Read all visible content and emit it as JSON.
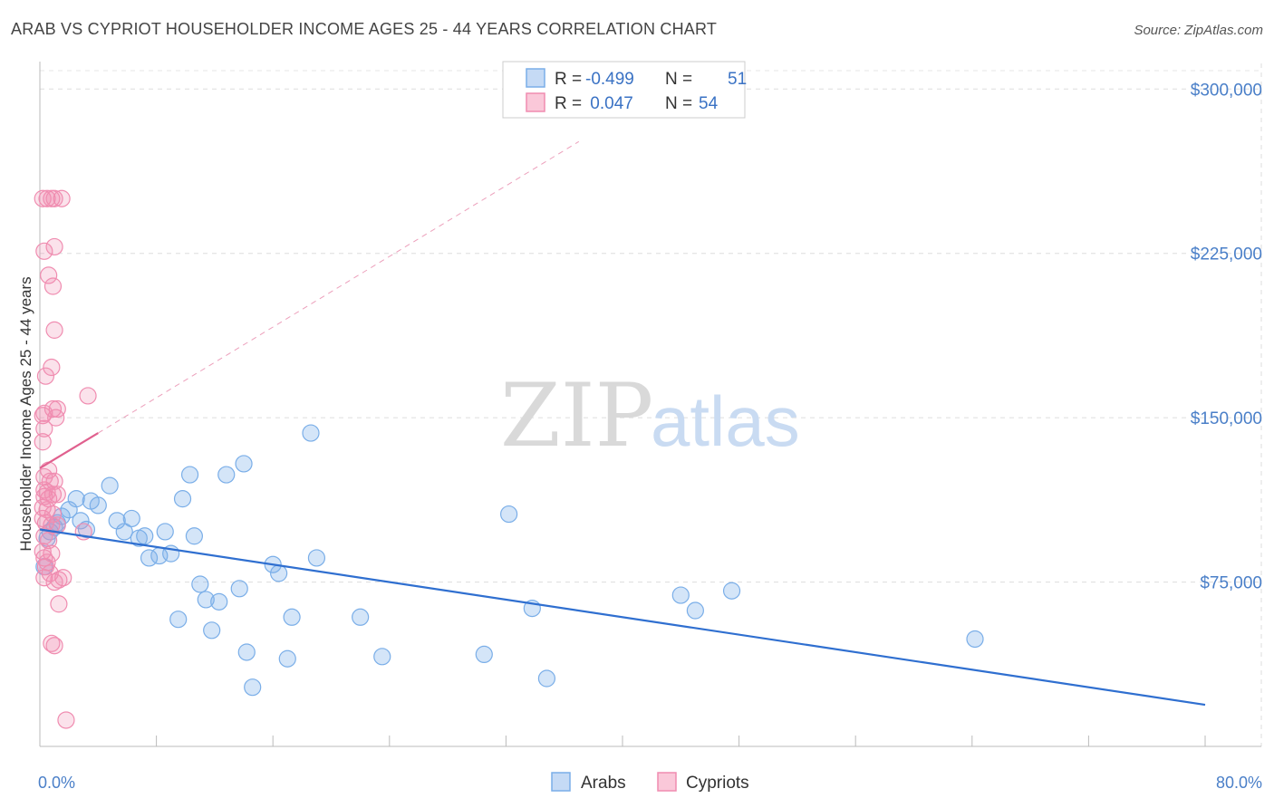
{
  "chart_data": {
    "type": "scatter",
    "title": "ARAB VS CYPRIOT HOUSEHOLDER INCOME AGES 25 - 44 YEARS CORRELATION CHART",
    "source": "Source: ZipAtlas.com",
    "xlabel": "",
    "ylabel": "Householder Income Ages 25 - 44 years",
    "xlim": [
      0,
      80
    ],
    "ylim": [
      0,
      315000
    ],
    "x_tick_labels": [
      "0.0%",
      "80.0%"
    ],
    "y_ticks": [
      75000,
      150000,
      225000,
      300000
    ],
    "y_tick_labels": [
      "$75,000",
      "$150,000",
      "$225,000",
      "$300,000"
    ],
    "watermark": {
      "zip": "ZIP",
      "atlas": "atlas"
    },
    "legend": {
      "rows": [
        {
          "r_label": "R = ",
          "r_value": "-0.499",
          "n_label": "N = ",
          "n_value": "51"
        },
        {
          "r_label": "R = ",
          "r_value": " 0.047",
          "n_label": "N = ",
          "n_value": "54"
        }
      ]
    },
    "series": [
      {
        "name": "Arabs",
        "color": "#7aaee8",
        "line_color": "#2f6fd0",
        "trend": {
          "x0": 0,
          "y0": 99000,
          "x1": 80,
          "y1": 19000
        },
        "points": [
          [
            0.5,
            95000
          ],
          [
            0.7,
            98000
          ],
          [
            1.0,
            100000
          ],
          [
            1.2,
            102000
          ],
          [
            1.5,
            105000
          ],
          [
            2.0,
            108000
          ],
          [
            2.5,
            113000
          ],
          [
            2.8,
            103000
          ],
          [
            3.2,
            99000
          ],
          [
            3.5,
            112000
          ],
          [
            4.0,
            110000
          ],
          [
            4.8,
            119000
          ],
          [
            5.3,
            103000
          ],
          [
            5.8,
            98000
          ],
          [
            6.3,
            104000
          ],
          [
            6.8,
            95000
          ],
          [
            7.2,
            96000
          ],
          [
            7.5,
            86000
          ],
          [
            8.2,
            87000
          ],
          [
            8.6,
            98000
          ],
          [
            9.0,
            88000
          ],
          [
            9.5,
            58000
          ],
          [
            9.8,
            113000
          ],
          [
            10.3,
            124000
          ],
          [
            10.6,
            96000
          ],
          [
            11.0,
            74000
          ],
          [
            11.4,
            67000
          ],
          [
            11.8,
            53000
          ],
          [
            12.3,
            66000
          ],
          [
            12.8,
            124000
          ],
          [
            13.7,
            72000
          ],
          [
            14.0,
            129000
          ],
          [
            14.2,
            43000
          ],
          [
            14.6,
            27000
          ],
          [
            16.0,
            83000
          ],
          [
            16.4,
            79000
          ],
          [
            17.0,
            40000
          ],
          [
            17.3,
            59000
          ],
          [
            18.6,
            143000
          ],
          [
            19.0,
            86000
          ],
          [
            22.0,
            59000
          ],
          [
            23.5,
            41000
          ],
          [
            30.5,
            42000
          ],
          [
            32.2,
            106000
          ],
          [
            33.8,
            63000
          ],
          [
            34.8,
            31000
          ],
          [
            44.0,
            69000
          ],
          [
            45.0,
            62000
          ],
          [
            47.5,
            71000
          ],
          [
            64.2,
            49000
          ],
          [
            0.3,
            82000
          ]
        ]
      },
      {
        "name": "Cypriots",
        "color": "#f08cb0",
        "line_color": "#e0608e",
        "trend": {
          "x0": 0,
          "y0": 127000,
          "x1": 4,
          "y1": 143000
        },
        "trend_ext": {
          "x0": 4,
          "y0": 143000,
          "x1": 37,
          "y1": 276000
        },
        "points": [
          [
            0.2,
            250000
          ],
          [
            0.5,
            250000
          ],
          [
            0.8,
            250000
          ],
          [
            1.0,
            250000
          ],
          [
            1.5,
            250000
          ],
          [
            0.3,
            226000
          ],
          [
            1.0,
            228000
          ],
          [
            0.6,
            215000
          ],
          [
            0.9,
            210000
          ],
          [
            1.0,
            190000
          ],
          [
            0.8,
            173000
          ],
          [
            0.4,
            169000
          ],
          [
            3.3,
            160000
          ],
          [
            0.3,
            152000
          ],
          [
            0.9,
            154000
          ],
          [
            1.2,
            154000
          ],
          [
            0.2,
            151000
          ],
          [
            1.1,
            150000
          ],
          [
            0.3,
            145000
          ],
          [
            0.2,
            139000
          ],
          [
            0.6,
            126000
          ],
          [
            0.3,
            123000
          ],
          [
            0.7,
            121000
          ],
          [
            1.0,
            121000
          ],
          [
            0.3,
            117000
          ],
          [
            0.5,
            116000
          ],
          [
            0.9,
            115000
          ],
          [
            1.2,
            115000
          ],
          [
            0.3,
            114000
          ],
          [
            0.6,
            113000
          ],
          [
            0.2,
            109000
          ],
          [
            0.5,
            108000
          ],
          [
            0.9,
            106000
          ],
          [
            0.2,
            104000
          ],
          [
            0.4,
            102000
          ],
          [
            0.8,
            101000
          ],
          [
            1.2,
            101000
          ],
          [
            3.0,
            98000
          ],
          [
            0.3,
            96000
          ],
          [
            0.6,
            94000
          ],
          [
            0.2,
            89000
          ],
          [
            0.8,
            88000
          ],
          [
            0.3,
            86000
          ],
          [
            0.5,
            84000
          ],
          [
            0.7,
            79000
          ],
          [
            0.3,
            77000
          ],
          [
            1.3,
            76000
          ],
          [
            1.6,
            77000
          ],
          [
            1.0,
            75000
          ],
          [
            1.3,
            65000
          ],
          [
            0.8,
            47000
          ],
          [
            1.0,
            46000
          ],
          [
            1.8,
            12000
          ],
          [
            0.4,
            82000
          ]
        ]
      }
    ]
  }
}
